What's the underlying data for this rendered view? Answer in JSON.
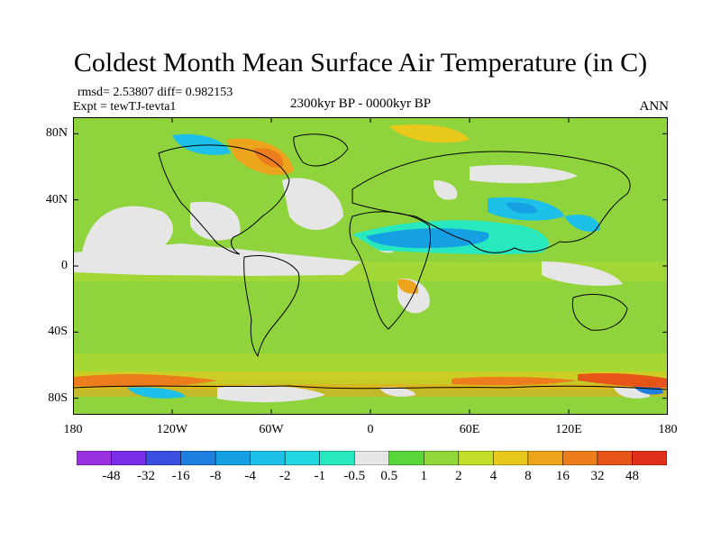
{
  "title": "Coldest Month Mean Surface Air Temperature (in C)",
  "stats": {
    "rmsd_line": "rmsd= 2.53807 diff= 0.982153",
    "expt_line": "Expt = tewTJ-tevta1"
  },
  "period": "2300kyr BP - 0000kyr BP",
  "season": "ANN",
  "axes": {
    "lat_labels": [
      "80N",
      "40N",
      "0",
      "40S",
      "80S"
    ],
    "lat_values": [
      80,
      40,
      0,
      -40,
      -80
    ],
    "lon_labels": [
      "180",
      "120W",
      "60W",
      "0",
      "60E",
      "120E",
      "180"
    ],
    "lon_values": [
      -180,
      -120,
      -60,
      0,
      60,
      120,
      180
    ],
    "lat_range": [
      -90,
      90
    ],
    "lon_range": [
      -180,
      180
    ]
  },
  "colorbar": {
    "labels": [
      "-48",
      "-32",
      "-16",
      "-8",
      "-4",
      "-2",
      "-1",
      "-0.5",
      "0.5",
      "1",
      "2",
      "4",
      "8",
      "16",
      "32",
      "48"
    ],
    "colors": [
      "#9b30e0",
      "#7b2ee8",
      "#3a4fe0",
      "#1f7fe0",
      "#16a0e4",
      "#1cc0e8",
      "#20d8e0",
      "#28e8c0",
      "#e6e6e6",
      "#58d63a",
      "#90d83a",
      "#c4dc2a",
      "#e8c81a",
      "#eca41c",
      "#ec7c1c",
      "#e65418",
      "#e0301a"
    ]
  },
  "map_style": {
    "ocean_base": "#8fd43c",
    "coast_color": "#000000"
  }
}
